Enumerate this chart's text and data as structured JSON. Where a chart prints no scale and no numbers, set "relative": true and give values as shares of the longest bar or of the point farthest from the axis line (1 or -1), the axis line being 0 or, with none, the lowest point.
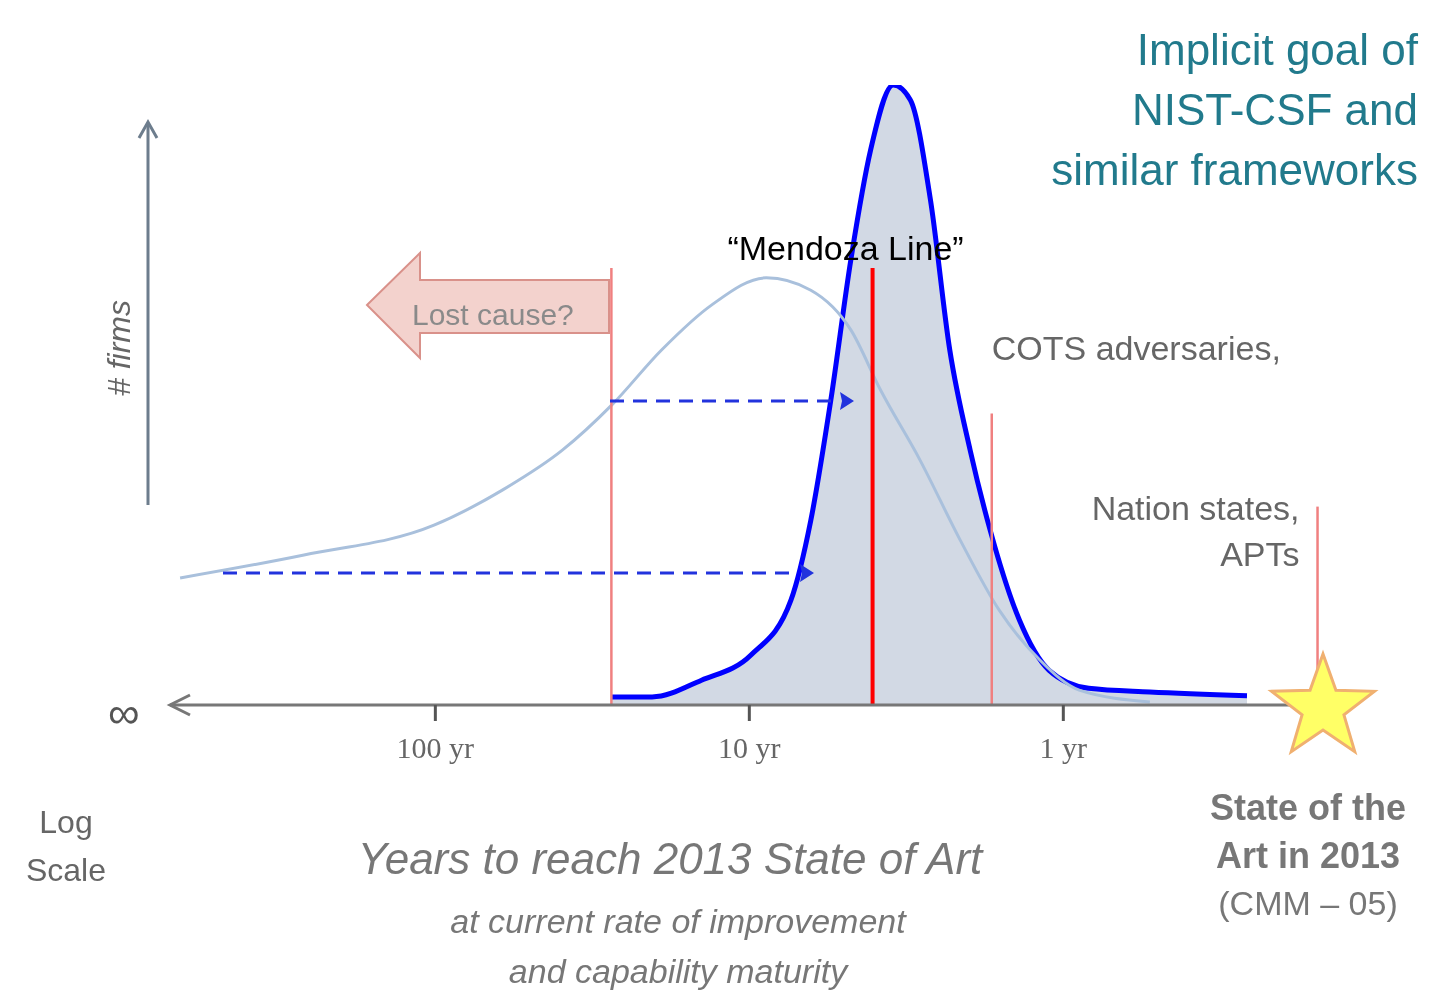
{
  "chart_data": {
    "type": "line",
    "relative": true,
    "log": "x",
    "xlabel": "Years to reach 2013 State of Art",
    "ylabel": "# firms",
    "xlim": [
      700,
      0.15
    ],
    "xticks": [
      {
        "value": 100,
        "label": "100 yr"
      },
      {
        "value": 10,
        "label": "10 yr"
      },
      {
        "value": 1,
        "label": "1 yr"
      }
    ],
    "series": [
      {
        "color": "#a9c0dc",
        "x": [
          650,
          262,
          101,
          61,
          39.4,
          27.4,
          19.0,
          13.2,
          8.83,
          6.37,
          4.75,
          3.82,
          2.86,
          2.13,
          1.6,
          1.19,
          0.89,
          0.53
        ],
        "values": [
          0.205,
          0.242,
          0.29,
          0.347,
          0.411,
          0.484,
          0.573,
          0.645,
          0.689,
          0.669,
          0.605,
          0.508,
          0.395,
          0.266,
          0.153,
          0.073,
          0.024,
          0.005
        ]
      },
      {
        "type": "area",
        "color": "#0000ff",
        "x": [
          27.5,
          20.4,
          14.2,
          9.86,
          7.37,
          6.37,
          5.5,
          4.75,
          4.11,
          3.48,
          3.07,
          2.65,
          2.3,
          1.98,
          1.71,
          1.38,
          1.11,
          0.83,
          0.53,
          0.26
        ],
        "values": [
          0.013,
          0.013,
          0.04,
          0.081,
          0.169,
          0.298,
          0.492,
          0.718,
          0.895,
          1,
          0.976,
          0.815,
          0.573,
          0.411,
          0.282,
          0.137,
          0.056,
          0.027,
          0.021,
          0.015
        ]
      }
    ],
    "ref_lines": [
      {
        "axis": "x",
        "value": 27.5,
        "label": null,
        "color": "#f08080"
      },
      {
        "axis": "x",
        "value": 4.05,
        "label": "“Mendoza Line”",
        "color": "#ff0000"
      },
      {
        "axis": "x",
        "value": 1.69,
        "label": "COTS adversaries,",
        "color": "#f08080"
      },
      {
        "axis": "x",
        "value": 0.155,
        "label": "Nation states,\nAPTs",
        "color": "#f08080"
      }
    ],
    "annotations": [
      "Implicit goal of\nNIST-CSF and\nsimilar frameworks",
      "Lost cause?",
      "∞",
      "Log\nScale",
      "at current rate of improvement\nand capability maturity",
      "State of  the\nArt in 2013",
      "(CMM – 05)"
    ],
    "marker": "none",
    "line_style": "solid"
  }
}
